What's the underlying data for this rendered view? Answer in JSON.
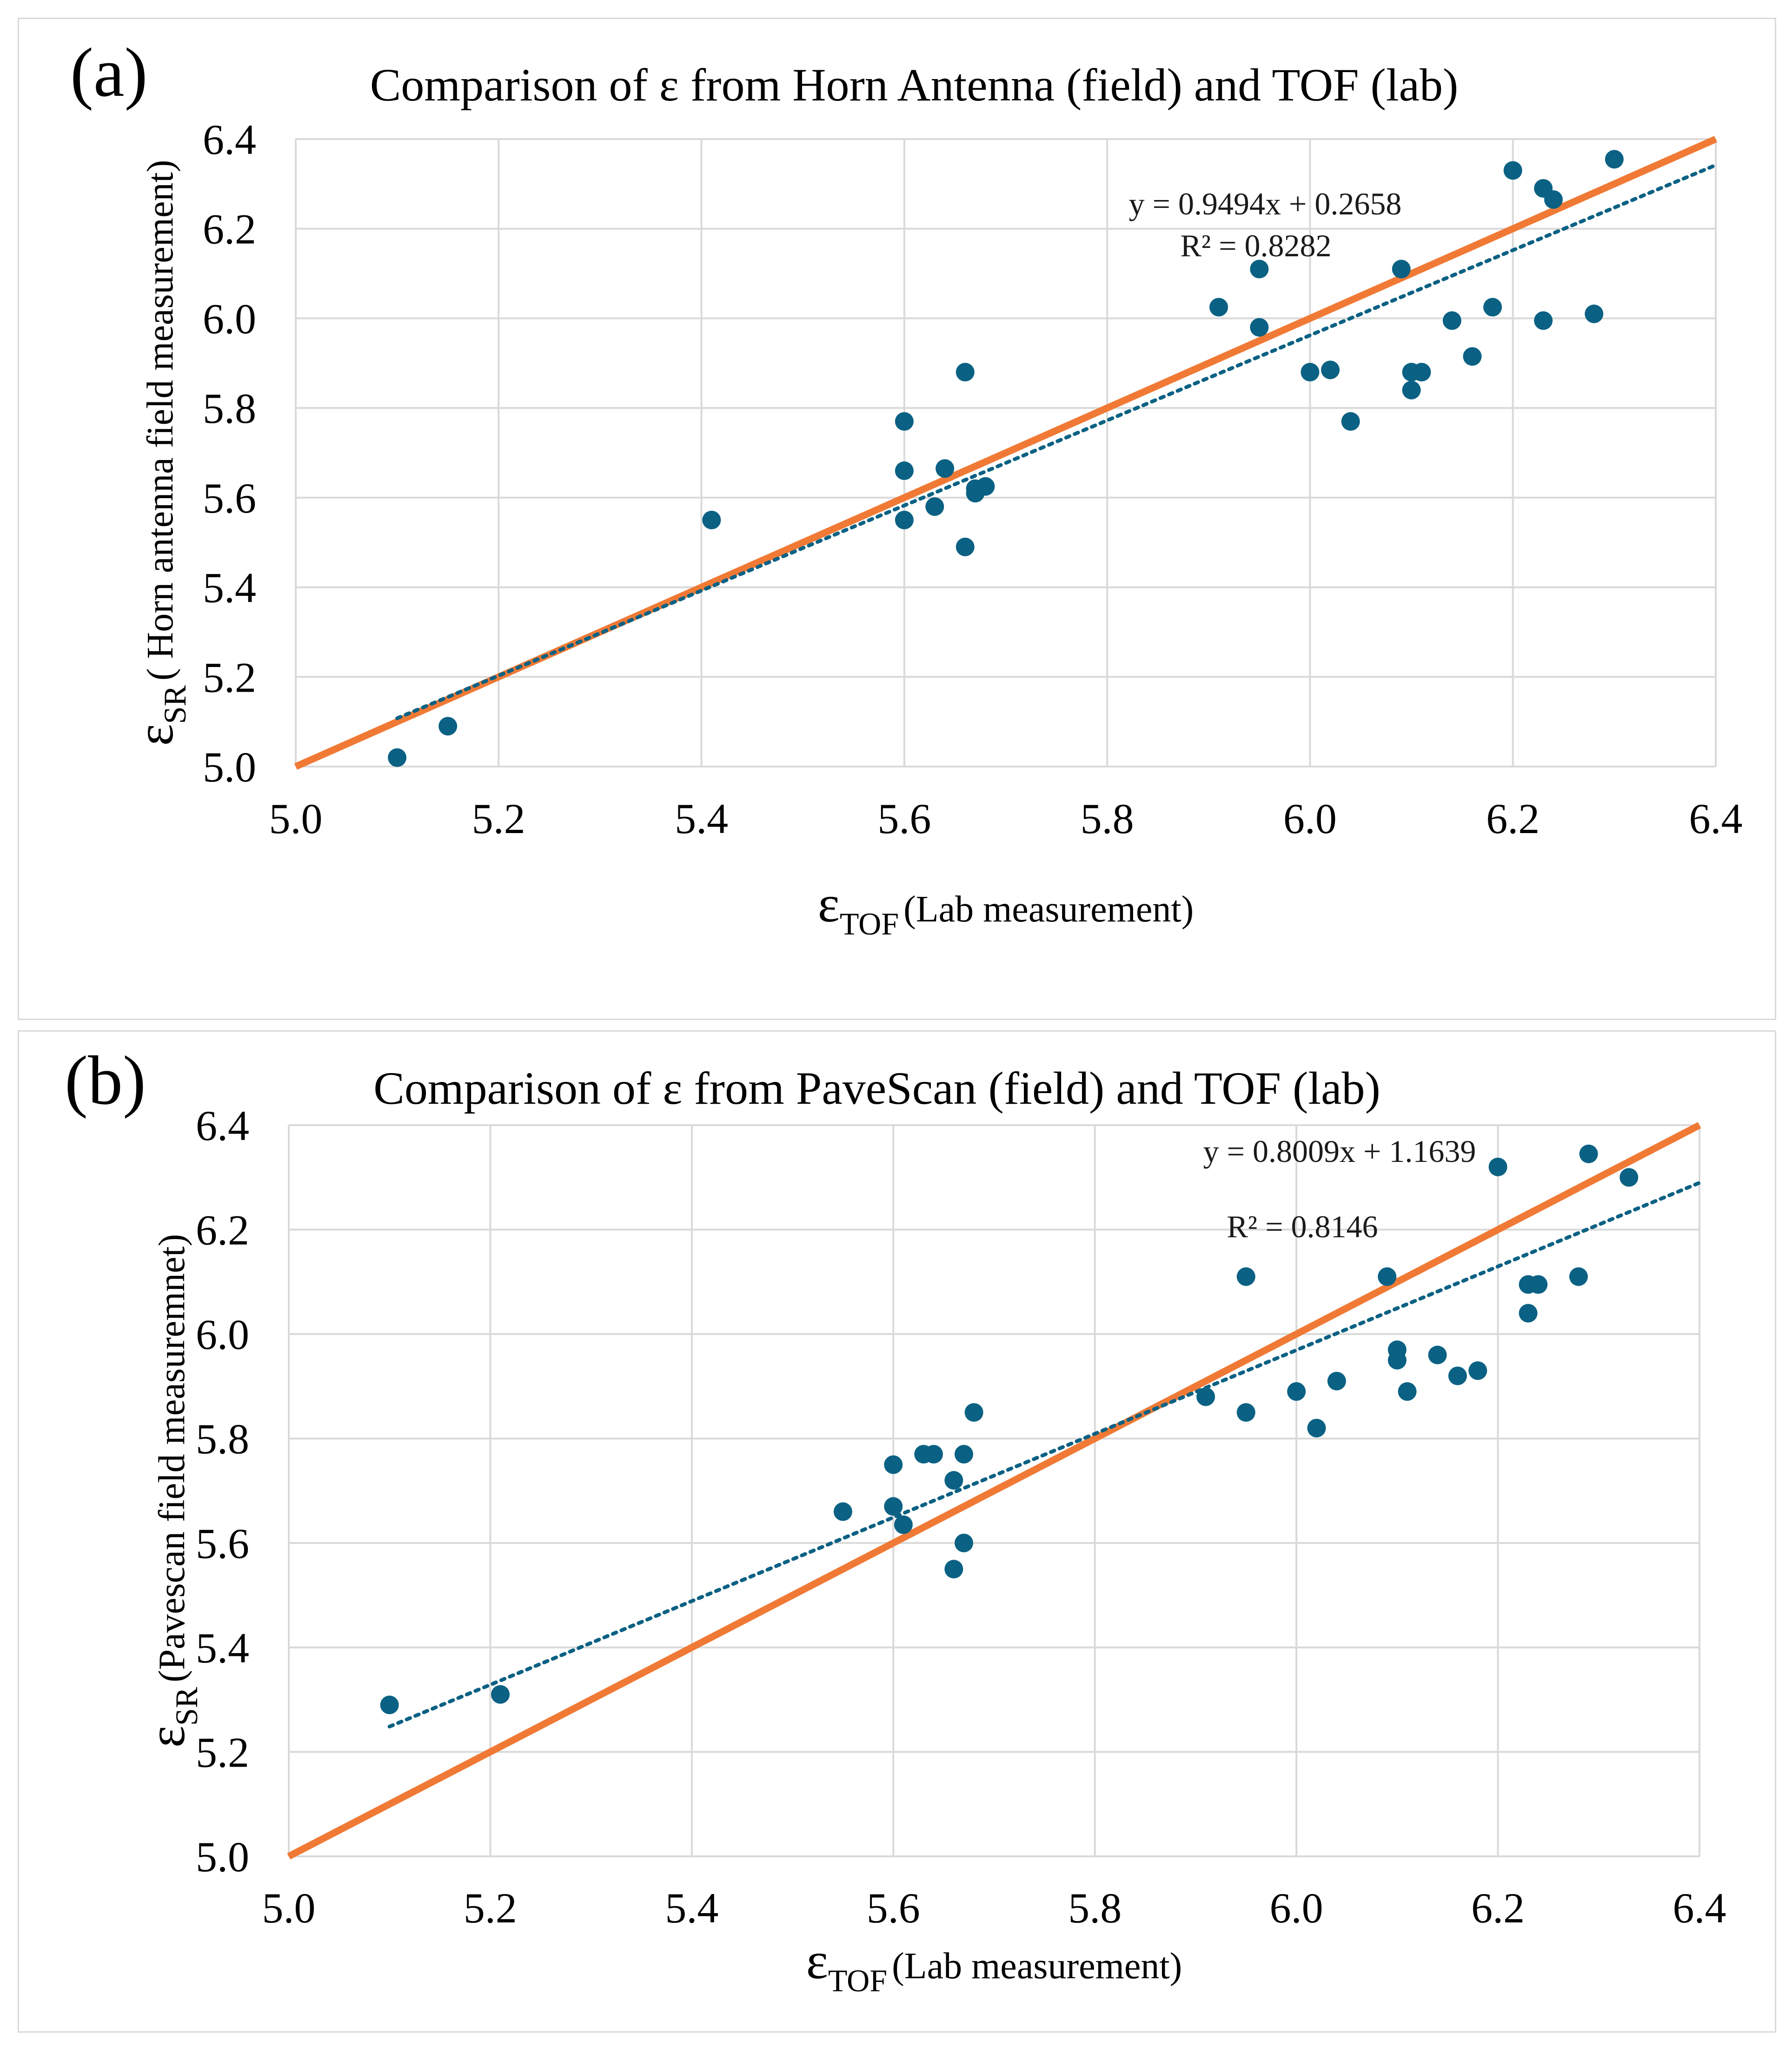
{
  "chart_data": [
    {
      "type": "scatter",
      "panel_label": "(a)",
      "title": "Comparison of ε from Horn Antenna (field) and TOF (lab)",
      "x_label": {
        "symbol": "ε",
        "subscript": "TOF",
        "text": "(Lab measurement)"
      },
      "y_label": {
        "symbol": "ε",
        "subscript": "SR",
        "text": "( Horn antenna field measurement)"
      },
      "xlim": [
        5.0,
        6.4
      ],
      "ylim": [
        5.0,
        6.4
      ],
      "x_ticks": [
        "5.0",
        "5.2",
        "5.4",
        "5.6",
        "5.8",
        "6.0",
        "6.2",
        "6.4"
      ],
      "y_ticks": [
        "5.0",
        "5.2",
        "5.4",
        "5.6",
        "5.8",
        "6.0",
        "6.2",
        "6.4"
      ],
      "grid": true,
      "colors": {
        "points": "#0b6183",
        "reference_line": "#f07a35",
        "trendline": "#0b6183"
      },
      "reference_line": {
        "style": "solid",
        "from": [
          5.0,
          5.0
        ],
        "to": [
          6.4,
          6.4
        ]
      },
      "trendline": {
        "style": "dotted",
        "slope": 0.9494,
        "intercept": 0.2658,
        "x_range": [
          5.1,
          6.4
        ]
      },
      "equation": "y = 0.9494x + 0.2658",
      "r_squared": "R² = 0.8282",
      "points": [
        [
          5.1,
          5.02
        ],
        [
          5.15,
          5.09
        ],
        [
          5.41,
          5.55
        ],
        [
          5.6,
          5.77
        ],
        [
          5.6,
          5.66
        ],
        [
          5.6,
          5.55
        ],
        [
          5.63,
          5.58
        ],
        [
          5.64,
          5.665
        ],
        [
          5.66,
          5.88
        ],
        [
          5.66,
          5.49
        ],
        [
          5.67,
          5.61
        ],
        [
          5.67,
          5.62
        ],
        [
          5.68,
          5.625
        ],
        [
          5.91,
          6.025
        ],
        [
          5.95,
          6.11
        ],
        [
          5.95,
          5.98
        ],
        [
          6.0,
          5.88
        ],
        [
          6.02,
          5.885
        ],
        [
          6.04,
          5.77
        ],
        [
          6.09,
          6.11
        ],
        [
          6.1,
          5.88
        ],
        [
          6.1,
          5.84
        ],
        [
          6.11,
          5.88
        ],
        [
          6.14,
          5.995
        ],
        [
          6.16,
          5.915
        ],
        [
          6.18,
          6.025
        ],
        [
          6.2,
          6.33
        ],
        [
          6.23,
          6.29
        ],
        [
          6.24,
          6.265
        ],
        [
          6.23,
          5.995
        ],
        [
          6.28,
          6.01
        ],
        [
          6.3,
          6.355
        ]
      ]
    },
    {
      "type": "scatter",
      "panel_label": "(b)",
      "title": "Comparison of ε from PaveScan (field) and TOF (lab)",
      "x_label": {
        "symbol": "ε",
        "subscript": "TOF",
        "text": "(Lab measurement)"
      },
      "y_label": {
        "symbol": "ε",
        "subscript": "SR",
        "text": "(Pavescan field measuremnet)"
      },
      "xlim": [
        5.0,
        6.4
      ],
      "ylim": [
        5.0,
        6.4
      ],
      "x_ticks": [
        "5.0",
        "5.2",
        "5.4",
        "5.6",
        "5.8",
        "6.0",
        "6.2",
        "6.4"
      ],
      "y_ticks": [
        "5.0",
        "5.2",
        "5.4",
        "5.6",
        "5.8",
        "6.0",
        "6.2",
        "6.4"
      ],
      "grid": true,
      "colors": {
        "points": "#0b6183",
        "reference_line": "#f07a35",
        "trendline": "#0b6183"
      },
      "reference_line": {
        "style": "solid",
        "from": [
          5.0,
          5.0
        ],
        "to": [
          6.4,
          6.4
        ]
      },
      "trendline": {
        "style": "dotted",
        "slope": 0.8009,
        "intercept": 1.1639,
        "x_range": [
          5.1,
          6.4
        ]
      },
      "equation": "y = 0.8009x + 1.1639",
      "r_squared": "R² = 0.8146",
      "points": [
        [
          5.1,
          5.29
        ],
        [
          5.21,
          5.31
        ],
        [
          5.55,
          5.66
        ],
        [
          5.6,
          5.75
        ],
        [
          5.6,
          5.67
        ],
        [
          5.61,
          5.635
        ],
        [
          5.63,
          5.77
        ],
        [
          5.64,
          5.77
        ],
        [
          5.66,
          5.72
        ],
        [
          5.66,
          5.55
        ],
        [
          5.67,
          5.77
        ],
        [
          5.67,
          5.6
        ],
        [
          5.68,
          5.85
        ],
        [
          5.91,
          5.88
        ],
        [
          5.95,
          6.11
        ],
        [
          5.95,
          5.85
        ],
        [
          6.0,
          5.89
        ],
        [
          6.02,
          5.82
        ],
        [
          6.04,
          5.91
        ],
        [
          6.09,
          6.11
        ],
        [
          6.1,
          5.97
        ],
        [
          6.1,
          5.95
        ],
        [
          6.11,
          5.89
        ],
        [
          6.14,
          5.96
        ],
        [
          6.16,
          5.92
        ],
        [
          6.18,
          5.93
        ],
        [
          6.2,
          6.32
        ],
        [
          6.23,
          6.095
        ],
        [
          6.24,
          6.095
        ],
        [
          6.23,
          6.04
        ],
        [
          6.28,
          6.11
        ],
        [
          6.29,
          6.345
        ],
        [
          6.33,
          6.3
        ]
      ]
    }
  ]
}
